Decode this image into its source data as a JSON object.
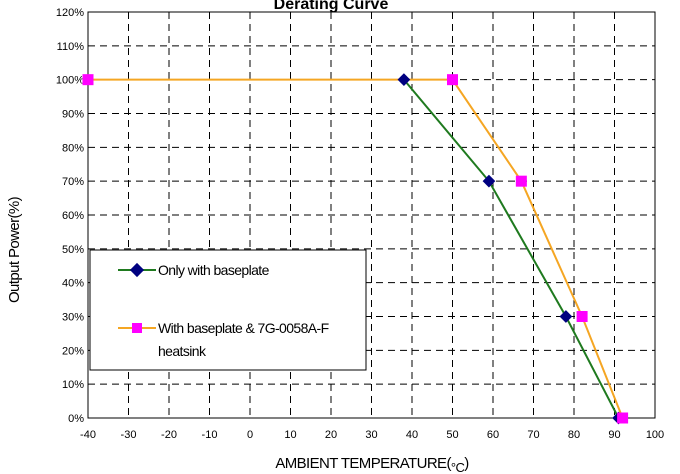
{
  "chart_data": {
    "type": "line",
    "title": "Derating Curve",
    "xlabel": "AMBIENT TEMPERATURE(",
    "xlabel_unit": "°C",
    "xlabel_close": ")",
    "ylabel": "Output Power(%)",
    "xlim": [
      -40,
      100
    ],
    "ylim": [
      0,
      120
    ],
    "x_ticks": [
      "-40",
      "-30",
      "-20",
      "-10",
      "0",
      "10",
      "20",
      "30",
      "40",
      "50",
      "60",
      "70",
      "80",
      "90",
      "100"
    ],
    "y_ticks": [
      "0%",
      "10%",
      "20%",
      "30%",
      "40%",
      "50%",
      "60%",
      "70%",
      "80%",
      "90%",
      "100%",
      "110%",
      "120%"
    ],
    "grid": true,
    "legend": "lower-left",
    "series": [
      {
        "name": "Only with baseplate",
        "color": "#1f7a1f",
        "marker": "diamond",
        "marker_color": "#000080",
        "x": [
          38,
          59,
          78,
          91
        ],
        "y": [
          100,
          70,
          30,
          0
        ]
      },
      {
        "name_lines": [
          "With baseplate & 7G-0058A-F",
          "heatsink"
        ],
        "color": "#f5a623",
        "marker": "square",
        "marker_color": "#ff00ff",
        "x": [
          -40,
          50,
          67,
          82,
          92
        ],
        "y": [
          100,
          100,
          70,
          30,
          0
        ]
      }
    ]
  }
}
